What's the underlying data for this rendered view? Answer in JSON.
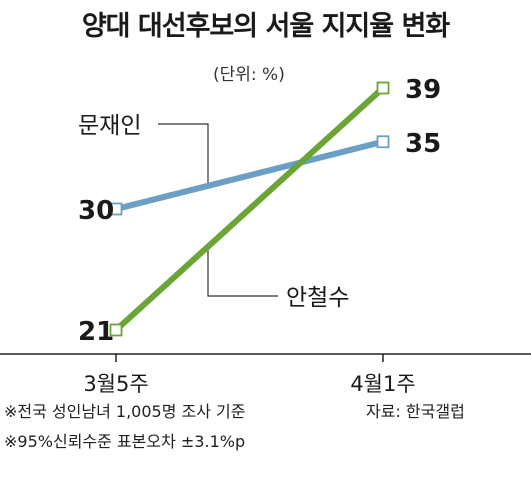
{
  "title": "양대 대선후보의 서울 지지율 변화",
  "unit": "(단위: %)",
  "notes": {
    "sample": "※전국 성인남녀 1,005명 조사 기준",
    "margin": "※95%신뢰수준 표본오차 ±3.1%p",
    "source": "자료: 한국갤럽"
  },
  "chart_data": {
    "type": "line",
    "categories": [
      "3월5주",
      "4월1주"
    ],
    "series": [
      {
        "name": "문재인",
        "values": [
          30,
          35
        ],
        "color": "#6a9fc6"
      },
      {
        "name": "안철수",
        "values": [
          21,
          39
        ],
        "color": "#6aa536"
      }
    ],
    "ylim": [
      18,
      42
    ]
  }
}
